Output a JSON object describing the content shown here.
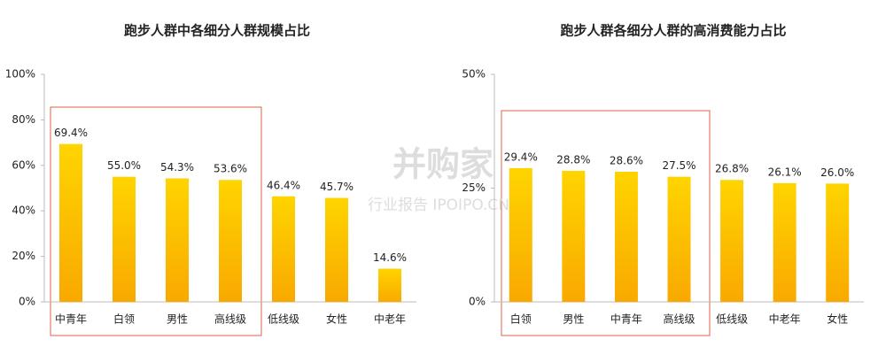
{
  "chart_data": [
    {
      "type": "bar",
      "title": "跑步人群中各细分人群规模占比",
      "categories": [
        "中青年",
        "白领",
        "男性",
        "高线级",
        "低线级",
        "女性",
        "中老年"
      ],
      "values": [
        69.4,
        55.0,
        54.3,
        53.6,
        46.4,
        45.7,
        14.6
      ],
      "value_labels": [
        "69.4%",
        "55.0%",
        "54.3%",
        "53.6%",
        "46.4%",
        "45.7%",
        "14.6%"
      ],
      "color": "#ffc000",
      "ylim": [
        0,
        100
      ],
      "yticks": [
        {
          "value": 0,
          "label": "0%"
        },
        {
          "value": 20,
          "label": "20%"
        },
        {
          "value": 40,
          "label": "40%"
        },
        {
          "value": 60,
          "label": "60%"
        },
        {
          "value": 80,
          "label": "80%"
        },
        {
          "value": 100,
          "label": "100%"
        }
      ],
      "grid": false
    },
    {
      "type": "bar",
      "title": "跑步人群各细分人群的高消费能力占比",
      "categories": [
        "白领",
        "男性",
        "中青年",
        "高线级",
        "低线级",
        "中老年",
        "女性"
      ],
      "values": [
        29.4,
        28.8,
        28.6,
        27.5,
        26.8,
        26.1,
        26.0
      ],
      "value_labels": [
        "29.4%",
        "28.8%",
        "28.6%",
        "27.5%",
        "26.8%",
        "26.1%",
        "26.0%"
      ],
      "color": "#ffc000",
      "ylim": [
        0,
        50
      ],
      "yticks": [
        {
          "value": 0,
          "label": "0%"
        },
        {
          "value": 25,
          "label": "25%"
        },
        {
          "value": 50,
          "label": "50%"
        }
      ],
      "grid": false
    }
  ],
  "watermark": {
    "brand": "并购家",
    "site": "行业报告 IPOIPO.CN"
  }
}
